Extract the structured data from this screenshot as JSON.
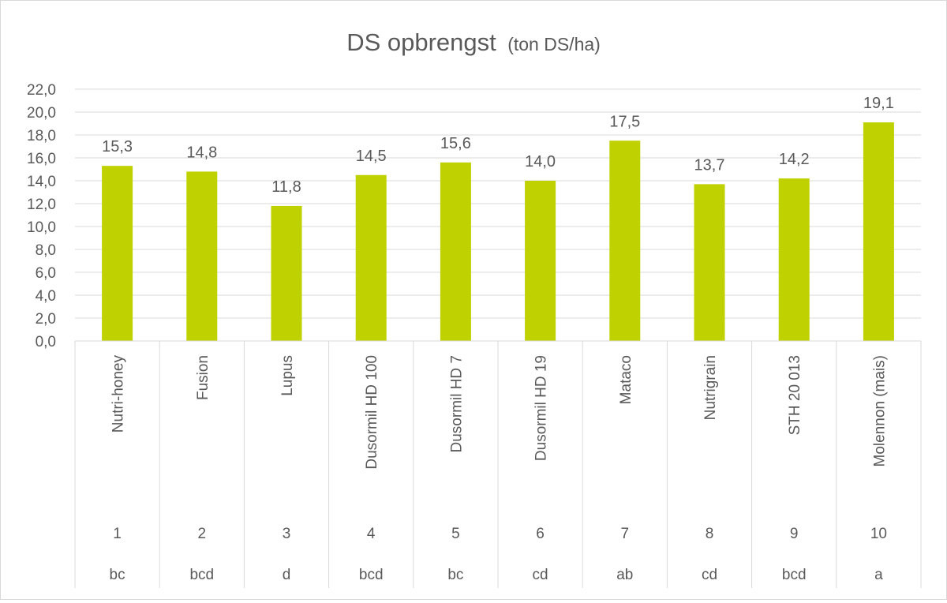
{
  "chart_data": {
    "type": "bar",
    "title": "DS opbrengst",
    "subtitle": "(ton DS/ha)",
    "xlabel": "",
    "ylabel": "",
    "ylim": [
      0,
      22
    ],
    "yticks": [
      "0,0",
      "2,0",
      "4,0",
      "6,0",
      "8,0",
      "10,0",
      "12,0",
      "14,0",
      "16,0",
      "18,0",
      "20,0",
      "22,0"
    ],
    "grid": true,
    "bar_color": "#bfd200",
    "categories": [
      "Nutri-honey",
      "Fusion",
      "Lupus",
      "Dusormil HD 100",
      "Dusormil HD 7",
      "Dusormil HD 19",
      "Mataco",
      "Nutrigrain",
      "STH 20 013",
      "Molennon (mais)"
    ],
    "numbers": [
      "1",
      "2",
      "3",
      "4",
      "5",
      "6",
      "7",
      "8",
      "9",
      "10"
    ],
    "groups": [
      "bc",
      "bcd",
      "d",
      "bcd",
      "bc",
      "cd",
      "ab",
      "cd",
      "bcd",
      "a"
    ],
    "values": [
      15.3,
      14.8,
      11.8,
      14.5,
      15.6,
      14.0,
      17.5,
      13.7,
      14.2,
      19.1
    ],
    "value_labels": [
      "15,3",
      "14,8",
      "11,8",
      "14,5",
      "15,6",
      "14,0",
      "17,5",
      "13,7",
      "14,2",
      "19,1"
    ]
  }
}
